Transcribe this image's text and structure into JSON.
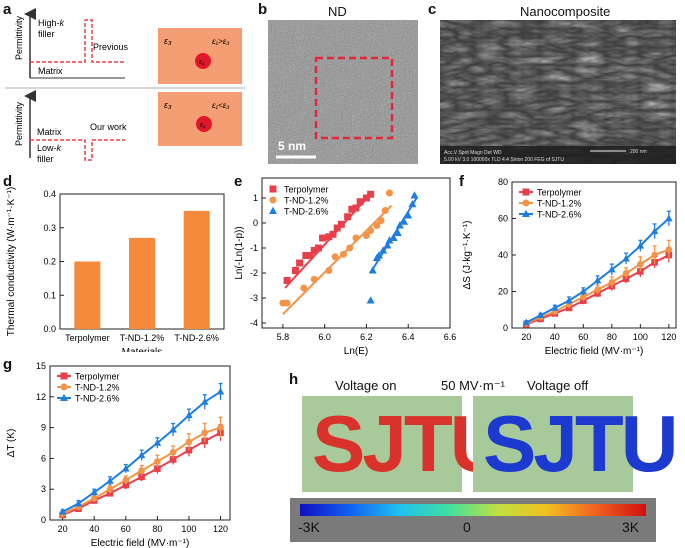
{
  "panels": {
    "a": {
      "letter": "a",
      "top": {
        "y_label": "Permittivity",
        "filler": [
          "High-",
          "k",
          "filler"
        ],
        "matrix": "Matrix",
        "tag": "Previous",
        "eps3": "ε₃",
        "eps1": "ε₁",
        "rel": "ε₁>ε₃"
      },
      "bottom": {
        "y_label": "Permittivity",
        "filler": [
          "Low-",
          "k",
          "filler"
        ],
        "matrix": "Matrix",
        "tag": "Our work",
        "eps3": "ε₃",
        "eps1": "ε₁",
        "rel": "ε₁<ε₃"
      }
    },
    "b": {
      "letter": "b",
      "title": "ND",
      "scale": "5 nm"
    },
    "c": {
      "letter": "c",
      "title": "Nanocomposite",
      "scale": "200 nm",
      "sem_info": "Acc.V  Spot Magn   Det  WD         200 nm\n5.00 kV 3.0 100000x TLD 4.4   Sirion 200 FEG of SJTU"
    },
    "d": {
      "letter": "d"
    },
    "e": {
      "letter": "e"
    },
    "f": {
      "letter": "f"
    },
    "g": {
      "letter": "g"
    },
    "h": {
      "letter": "h",
      "left": "Voltage on",
      "mid": "50 MV·m⁻¹",
      "right": "Voltage off",
      "word": "SJTU",
      "cb_min": "-3K",
      "cb_mid": "0",
      "cb_max": "3K"
    }
  },
  "colors": {
    "red": "#e8404a",
    "orange": "#f39448",
    "blue": "#1f7fe0",
    "bar": "#f58a3c",
    "tile": "#f59d73"
  },
  "chart_data": [
    {
      "id": "d",
      "type": "bar",
      "categories": [
        "Terpolymer",
        "T-ND-1.2%",
        "T-ND-2.6%"
      ],
      "values": [
        0.2,
        0.27,
        0.35
      ],
      "xlabel": "Materials",
      "ylabel": "Thermal conductivity (W·m⁻¹·K⁻¹)",
      "ylim": [
        0,
        0.4
      ],
      "yticks": [
        "0.0",
        "0.1",
        "0.2",
        "0.3",
        "0.4"
      ]
    },
    {
      "id": "e",
      "type": "scatter",
      "xlabel": "Ln(E)",
      "ylabel": "Ln(-Ln(1-p))",
      "xlim": [
        5.7,
        6.6
      ],
      "ylim": [
        -4.2,
        1.8
      ],
      "xticks": [
        "5.8",
        "6.0",
        "6.2",
        "6.4",
        "6.6"
      ],
      "yticks": [
        "-4",
        "-3",
        "-2",
        "-1",
        "0",
        "1"
      ],
      "legend": "top-left",
      "series": [
        {
          "name": "Terpolymer",
          "color": "#e8404a",
          "marker": "square",
          "x": [
            5.82,
            5.86,
            5.88,
            5.91,
            5.93,
            5.95,
            5.97,
            5.99,
            6.02,
            6.04,
            6.06,
            6.08,
            6.11,
            6.13,
            6.15,
            6.17,
            6.2,
            6.22
          ],
          "y": [
            -2.3,
            -1.9,
            -1.6,
            -1.3,
            -1.3,
            -1.1,
            -1.0,
            -0.6,
            -0.55,
            -0.45,
            -0.2,
            -0.05,
            0.25,
            0.55,
            0.6,
            0.85,
            1.0,
            1.15
          ],
          "fit": [
            [
              5.81,
              -2.6
            ],
            [
              6.22,
              1.15
            ]
          ]
        },
        {
          "name": "T-ND-1.2%",
          "color": "#f39448",
          "marker": "circle",
          "x": [
            5.8,
            5.82,
            5.9,
            5.95,
            6.02,
            6.05,
            6.09,
            6.12,
            6.15,
            6.2,
            6.22,
            6.25,
            6.27,
            6.29,
            6.31
          ],
          "y": [
            -3.2,
            -3.2,
            -2.6,
            -2.25,
            -1.9,
            -1.35,
            -1.25,
            -1.0,
            -0.6,
            -0.5,
            -0.3,
            -0.1,
            0.1,
            0.5,
            1.2
          ],
          "fit": [
            [
              5.8,
              -3.65
            ],
            [
              6.32,
              0.7
            ]
          ]
        },
        {
          "name": "T-ND-2.6%",
          "color": "#1f7fe0",
          "marker": "triangle",
          "x": [
            6.22,
            6.23,
            6.25,
            6.26,
            6.28,
            6.3,
            6.31,
            6.33,
            6.35,
            6.36,
            6.38,
            6.4,
            6.42,
            6.43
          ],
          "y": [
            -3.1,
            -1.9,
            -1.4,
            -1.3,
            -1.1,
            -0.9,
            -0.7,
            -0.6,
            -0.4,
            -0.1,
            0.05,
            0.3,
            0.75,
            1.1
          ],
          "fit": [
            [
              6.23,
              -1.85
            ],
            [
              6.44,
              1.0
            ]
          ]
        }
      ]
    },
    {
      "id": "f",
      "type": "line",
      "xlabel": "Electric field (MV·m⁻¹)",
      "ylabel": "ΔS (J·kg⁻¹·K⁻¹)",
      "xlim": [
        10,
        125
      ],
      "ylim": [
        0,
        80
      ],
      "xticks": [
        "20",
        "40",
        "60",
        "80",
        "100",
        "120"
      ],
      "yticks": [
        "0",
        "20",
        "40",
        "60",
        "80"
      ],
      "legend": "top-left",
      "x": [
        20,
        30,
        40,
        50,
        60,
        70,
        80,
        90,
        100,
        110,
        120
      ],
      "series": [
        {
          "name": "Terpolymer",
          "color": "#e8404a",
          "marker": "square",
          "values": [
            2,
            5,
            8,
            11,
            15,
            19,
            23,
            27,
            31,
            36,
            40
          ],
          "err": [
            1,
            1,
            1.5,
            1.5,
            2,
            2,
            2.5,
            2.5,
            3,
            3,
            4
          ]
        },
        {
          "name": "T-ND-1.2%",
          "color": "#f39448",
          "marker": "circle",
          "values": [
            2.5,
            6,
            9,
            13,
            17,
            21,
            25,
            30,
            35,
            40,
            43
          ],
          "err": [
            1,
            1,
            1.5,
            2,
            2,
            2.5,
            3,
            3,
            4,
            5,
            5
          ]
        },
        {
          "name": "T-ND-2.6%",
          "color": "#1f7fe0",
          "marker": "triangle",
          "values": [
            3,
            7,
            11,
            15,
            20,
            26,
            32,
            38,
            45,
            53,
            60
          ],
          "err": [
            1,
            1,
            1.5,
            2,
            2,
            2.5,
            3,
            3,
            3,
            4,
            4
          ]
        }
      ]
    },
    {
      "id": "g",
      "type": "line",
      "xlabel": "Electric field (MV·m⁻¹)",
      "ylabel": "ΔT (K)",
      "xlim": [
        12,
        126
      ],
      "ylim": [
        0,
        15
      ],
      "xticks": [
        "20",
        "40",
        "60",
        "80",
        "100",
        "120"
      ],
      "yticks": [
        "0",
        "3",
        "6",
        "9",
        "12",
        "15"
      ],
      "legend": "top-left",
      "x": [
        20,
        30,
        40,
        50,
        60,
        70,
        80,
        90,
        100,
        110,
        120
      ],
      "series": [
        {
          "name": "Terpolymer",
          "color": "#e8404a",
          "marker": "square",
          "values": [
            0.5,
            1.1,
            1.9,
            2.6,
            3.4,
            4.2,
            5.0,
            5.9,
            6.8,
            7.7,
            8.5
          ],
          "err": [
            0.2,
            0.2,
            0.3,
            0.3,
            0.4,
            0.4,
            0.5,
            0.5,
            0.6,
            0.7,
            0.8
          ]
        },
        {
          "name": "T-ND-1.2%",
          "color": "#f39448",
          "marker": "circle",
          "values": [
            0.6,
            1.3,
            2.1,
            3.0,
            3.9,
            4.8,
            5.7,
            6.6,
            7.6,
            8.5,
            9.0
          ],
          "err": [
            0.2,
            0.3,
            0.3,
            0.4,
            0.4,
            0.5,
            0.6,
            0.6,
            0.8,
            0.9,
            1.0
          ]
        },
        {
          "name": "T-ND-2.6%",
          "color": "#1f7fe0",
          "marker": "triangle",
          "values": [
            0.8,
            1.6,
            2.7,
            3.8,
            5.0,
            6.3,
            7.5,
            8.8,
            10.2,
            11.5,
            12.5
          ],
          "err": [
            0.2,
            0.3,
            0.3,
            0.4,
            0.4,
            0.5,
            0.5,
            0.6,
            0.6,
            0.7,
            0.8
          ]
        }
      ]
    }
  ]
}
